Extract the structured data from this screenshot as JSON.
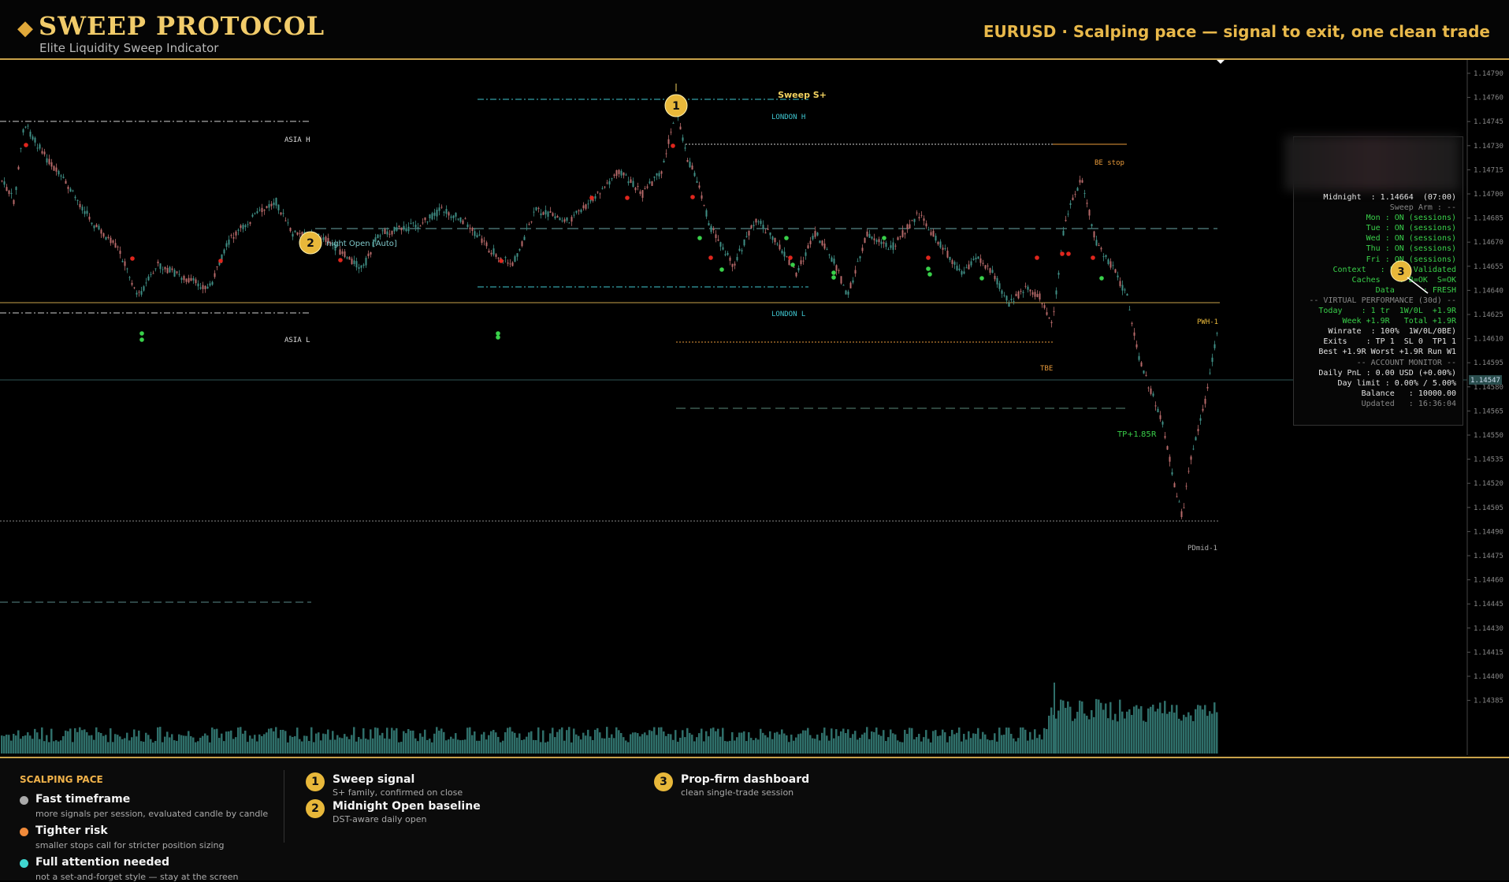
{
  "header": {
    "brand_icon": "diamond-icon",
    "brand": "SWEEP PROTOCOL",
    "subtitle": "Elite Liquidity Sweep Indicator",
    "headline": "EURUSD · Scalping pace — signal to exit, one clean trade"
  },
  "chart": {
    "signal_label": "Sweep S+",
    "badge1": "1",
    "badge2": "2",
    "badge3": "3",
    "midnight_label": "night Open [Auto]",
    "levels": {
      "asia_h": "ASIA H",
      "asia_l": "ASIA L",
      "london_h": "LONDON H",
      "london_l": "LONDON L",
      "be_stop": "BE stop",
      "pwh": "PWH-1",
      "tbe": "TBE",
      "tp": "TP+1.85R",
      "pdmid": "PDmid-1"
    },
    "current_price": "1.14547",
    "price_axis": [
      "1.14790",
      "1.14760",
      "1.14745",
      "1.14730",
      "1.14715",
      "1.14700",
      "1.14685",
      "1.14670",
      "1.14655",
      "1.14640",
      "1.14625",
      "1.14610",
      "1.14595",
      "1.14580",
      "1.14565",
      "1.14550",
      "1.14535",
      "1.14520",
      "1.14505",
      "1.14490",
      "1.14475",
      "1.14460",
      "1.14445",
      "1.14430",
      "1.14415",
      "1.14400",
      "1.14385"
    ],
    "colors": {
      "bull": "#3f8f86",
      "bear": "#b86a6a",
      "accent": "#e8b83a",
      "cyan": "#3fc6d0"
    }
  },
  "dashboard": {
    "rows": [
      {
        "text": "Midnight  : 1.14664  (07:00)",
        "cls": "w"
      },
      {
        "text": "Sweep Arm : --",
        "cls": "d"
      },
      {
        "text": "Mon : ON (sessions)",
        "cls": "g"
      },
      {
        "text": "Tue : ON (sessions)",
        "cls": "g"
      },
      {
        "text": "Wed : ON (sessions)",
        "cls": "g"
      },
      {
        "text": "Thu : ON (sessions)",
        "cls": "g"
      },
      {
        "text": "Fri : ON (sessions)",
        "cls": "g"
      },
      {
        "text": "Context   : Live Validated",
        "cls": "g"
      },
      {
        "text": "Caches    : B=OK  S=OK",
        "cls": "g"
      },
      {
        "text": "Data      : FRESH",
        "cls": "g"
      },
      {
        "text": "-- VIRTUAL PERFORMANCE (30d) --",
        "cls": "d"
      },
      {
        "text": "Today    : 1 tr  1W/0L  +1.9R",
        "cls": "g"
      },
      {
        "text": "Week +1.9R   Total +1.9R",
        "cls": "g"
      },
      {
        "text": "Winrate  : 100%  1W/0L/0BE)",
        "cls": "w"
      },
      {
        "text": "Exits    : TP 1  SL 0  TP1 1",
        "cls": "w"
      },
      {
        "text": "Best +1.9R Worst +1.9R Run W1",
        "cls": "w"
      },
      {
        "text": "-- ACCOUNT MONITOR --",
        "cls": "d"
      },
      {
        "text": "Daily PnL : 0.00 USD (+0.00%)",
        "cls": "w"
      },
      {
        "text": "Day limit : 0.00% / 5.00%",
        "cls": "w"
      },
      {
        "text": "Balance   : 10000.00",
        "cls": "w"
      },
      {
        "text": "Updated   : 16:36:04",
        "cls": "d"
      }
    ]
  },
  "footer": {
    "heading": "SCALPING PACE",
    "items": [
      {
        "title": "Fast timeframe",
        "sub": "more signals per session, evaluated candle by candle",
        "color": "#aaaaaa"
      },
      {
        "title": "Tighter risk",
        "sub": "smaller stops call for stricter position sizing",
        "color": "#f08a3a"
      },
      {
        "title": "Full attention needed",
        "sub": "not a set-and-forget style — stay at the screen",
        "color": "#3fd6d0"
      }
    ],
    "legend": [
      {
        "num": "1",
        "title": "Sweep signal",
        "sub": "S+ family, confirmed on close"
      },
      {
        "num": "2",
        "title": "Midnight Open baseline",
        "sub": "DST-aware daily open"
      },
      {
        "num": "3",
        "title": "Prop-firm dashboard",
        "sub": "clean single-trade session"
      }
    ]
  }
}
